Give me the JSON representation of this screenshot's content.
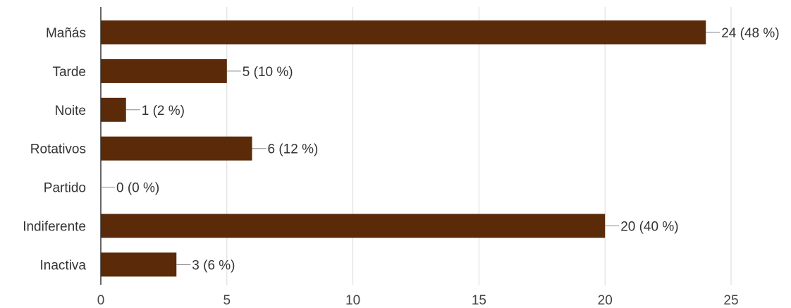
{
  "colors": {
    "bar": "#5b2a09",
    "grid": "#d9d9d9",
    "text": "#333333"
  },
  "chart_data": {
    "type": "bar",
    "orientation": "horizontal",
    "title": "",
    "xlabel": "",
    "ylabel": "",
    "categories": [
      "Mañás",
      "Tarde",
      "Noite",
      "Rotativos",
      "Partido",
      "Indiferente",
      "Inactiva"
    ],
    "values": [
      24,
      5,
      1,
      6,
      0,
      20,
      3
    ],
    "labels": [
      "24 (48 %)",
      "5 (10 %)",
      "1 (2 %)",
      "6 (12 %)",
      "0 (0 %)",
      "20 (40 %)",
      "3 (6 %)"
    ],
    "xlim": [
      0,
      25
    ],
    "xticks": [
      0,
      5,
      10,
      15,
      20,
      25
    ],
    "grid": true,
    "legend": "none"
  }
}
